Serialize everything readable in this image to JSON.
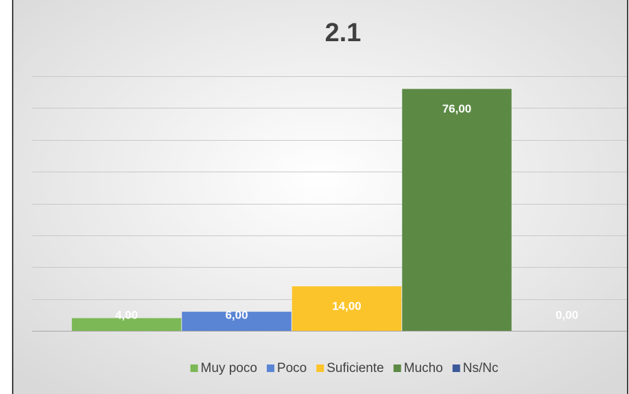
{
  "chart_data": {
    "type": "bar",
    "title": "2.1",
    "categories": [
      null
    ],
    "series": [
      {
        "name": "Muy poco",
        "color": "#7cb856",
        "values": [
          4
        ],
        "value_labels": [
          "4,00"
        ]
      },
      {
        "name": "Poco",
        "color": "#5a84d4",
        "values": [
          6
        ],
        "value_labels": [
          "6,00"
        ]
      },
      {
        "name": "Suficiente",
        "color": "#fcc42b",
        "values": [
          14
        ],
        "value_labels": [
          "14,00"
        ]
      },
      {
        "name": "Mucho",
        "color": "#5c8a45",
        "values": [
          76
        ],
        "value_labels": [
          "76,00"
        ]
      },
      {
        "name": "Ns/Nc",
        "color": "#3b5a9a",
        "values": [
          0
        ],
        "value_labels": [
          "0,00"
        ]
      }
    ],
    "ylim": [
      0,
      80
    ],
    "yticks": [
      0,
      10,
      20,
      30,
      40,
      50,
      60,
      70,
      80
    ],
    "grid": true,
    "legend": "bottom"
  }
}
